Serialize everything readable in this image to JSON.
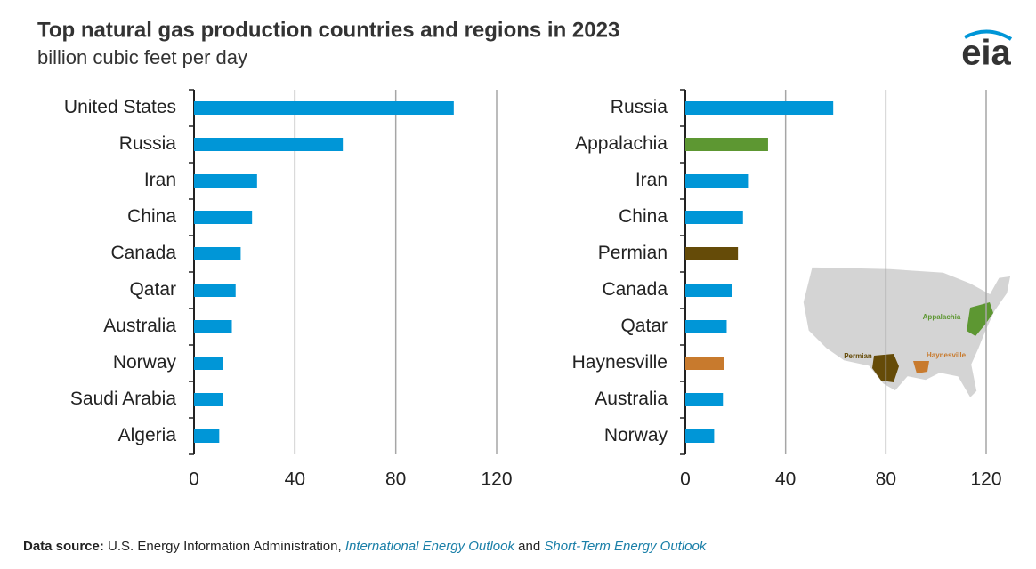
{
  "title": "Top natural gas production countries and regions in 2023",
  "subtitle": "billion cubic feet per day",
  "logo": "eia",
  "chart_data": [
    {
      "type": "bar",
      "orientation": "horizontal",
      "categories": [
        "United States",
        "Russia",
        "Iran",
        "China",
        "Canada",
        "Qatar",
        "Australia",
        "Norway",
        "Saudi Arabia",
        "Algeria"
      ],
      "values": [
        103,
        59,
        25,
        23,
        18.5,
        16.5,
        15,
        11.5,
        11.5,
        10
      ],
      "colors": [
        "#0096d7",
        "#0096d7",
        "#0096d7",
        "#0096d7",
        "#0096d7",
        "#0096d7",
        "#0096d7",
        "#0096d7",
        "#0096d7",
        "#0096d7"
      ],
      "xlim": [
        0,
        120
      ],
      "xticks": [
        0,
        40,
        80,
        120
      ],
      "grid": true
    },
    {
      "type": "bar",
      "orientation": "horizontal",
      "categories": [
        "Russia",
        "Appalachia",
        "Iran",
        "China",
        "Permian",
        "Canada",
        "Qatar",
        "Haynesville",
        "Australia",
        "Norway"
      ],
      "values": [
        59,
        33,
        25,
        23,
        21,
        18.5,
        16.5,
        15.5,
        15,
        11.5
      ],
      "colors": [
        "#0096d7",
        "#5d9732",
        "#0096d7",
        "#0096d7",
        "#654b08",
        "#0096d7",
        "#0096d7",
        "#c87a2d",
        "#0096d7",
        "#0096d7"
      ],
      "xlim": [
        0,
        120
      ],
      "xticks": [
        0,
        40,
        80,
        120
      ],
      "grid": true,
      "map_labels": [
        "Appalachia",
        "Permian",
        "Haynesville"
      ]
    }
  ],
  "source": {
    "label": "Data source:",
    "text": "U.S. Energy Information Administration,",
    "link1": "International Energy Outlook",
    "joiner": "and",
    "link2": "Short-Term Energy Outlook"
  }
}
